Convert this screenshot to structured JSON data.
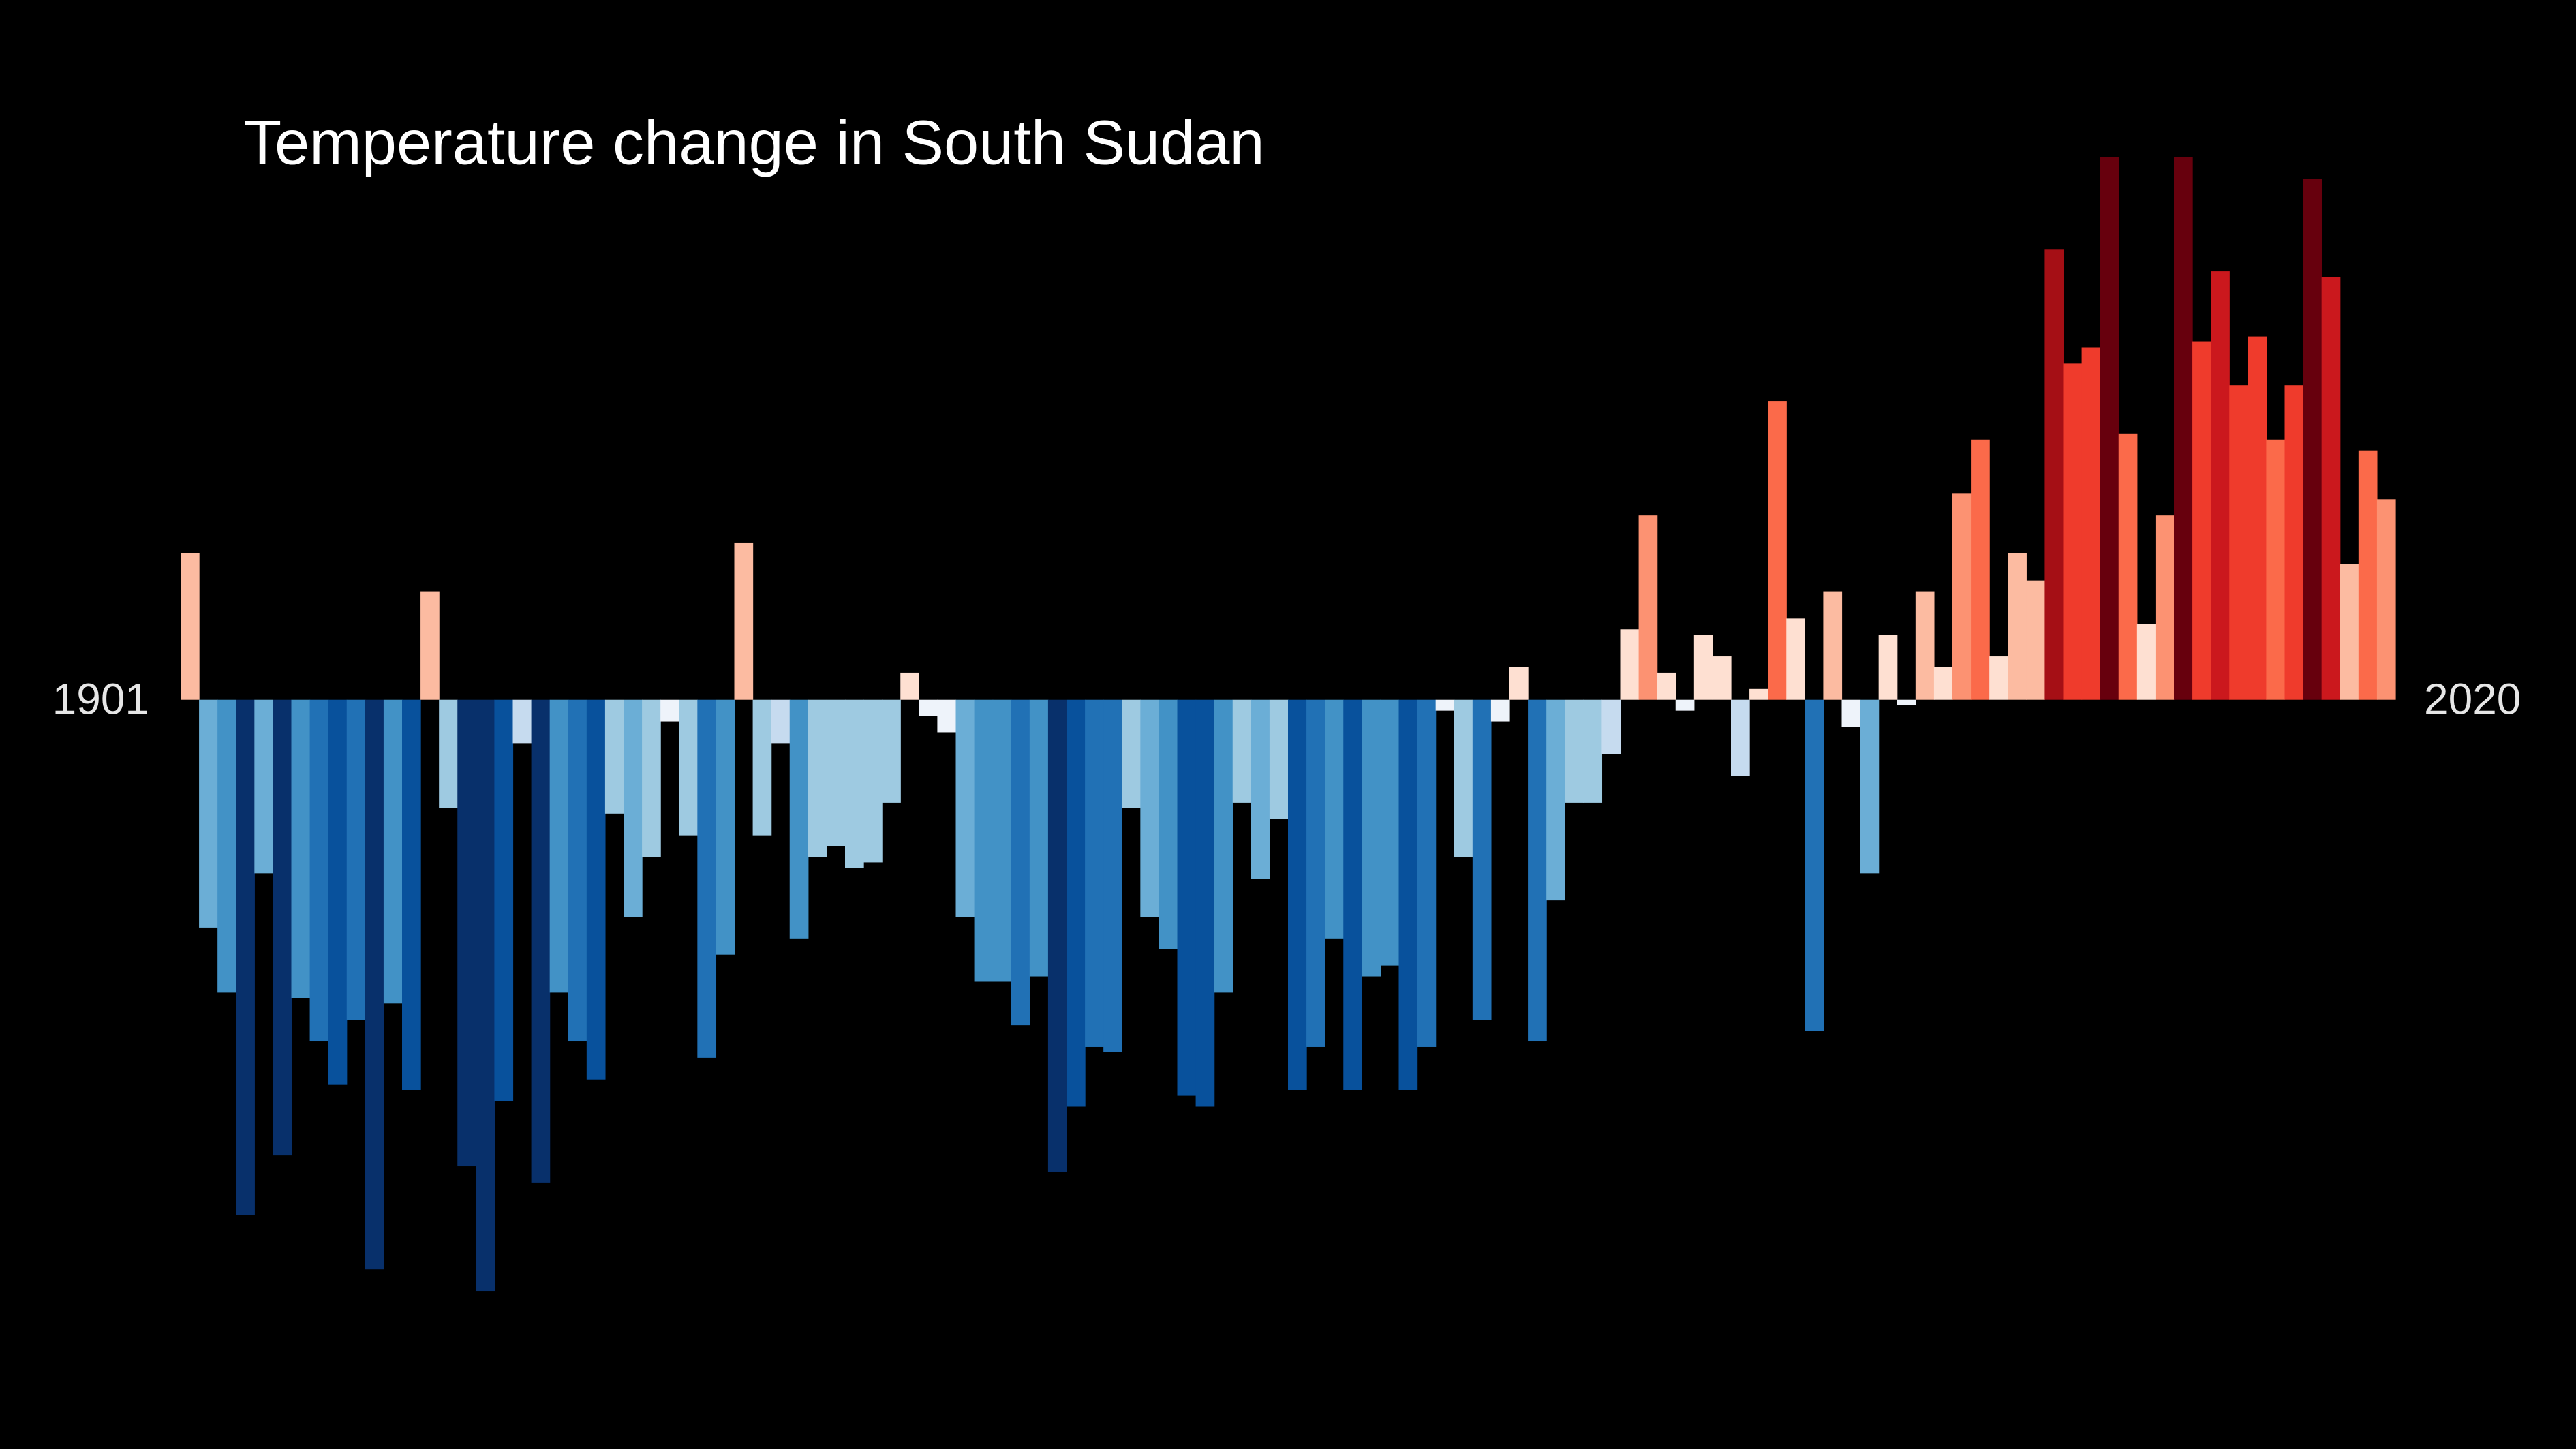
{
  "chart_data": {
    "type": "bar",
    "title": "Temperature change in South Sudan",
    "categories": [
      "1901",
      null,
      null,
      null,
      null,
      null,
      null,
      null,
      null,
      null,
      null,
      null,
      null,
      null,
      null,
      null,
      null,
      null,
      null,
      null,
      null,
      null,
      null,
      null,
      null,
      null,
      null,
      null,
      null,
      null,
      null,
      null,
      null,
      null,
      null,
      null,
      null,
      null,
      null,
      null,
      null,
      null,
      null,
      null,
      null,
      null,
      null,
      null,
      null,
      null,
      null,
      null,
      null,
      null,
      null,
      null,
      null,
      null,
      null,
      null,
      null,
      null,
      null,
      null,
      null,
      null,
      null,
      null,
      null,
      null,
      null,
      null,
      null,
      null,
      null,
      null,
      null,
      null,
      null,
      null,
      null,
      null,
      null,
      null,
      null,
      null,
      null,
      null,
      null,
      null,
      null,
      null,
      null,
      null,
      null,
      null,
      null,
      null,
      null,
      null,
      null,
      null,
      null,
      null,
      null,
      null,
      null,
      null,
      null,
      null,
      null,
      null,
      null,
      null,
      null,
      null,
      null,
      null,
      null,
      "2020"
    ],
    "values": [
      0.27,
      -0.42,
      -0.54,
      -0.95,
      -0.32,
      -0.84,
      -0.55,
      -0.63,
      -0.71,
      -0.59,
      -1.05,
      -0.56,
      -0.72,
      0.2,
      -0.2,
      -0.86,
      -1.09,
      -0.74,
      -0.08,
      -0.89,
      -0.54,
      -0.63,
      -0.7,
      -0.21,
      -0.4,
      -0.29,
      -0.04,
      -0.25,
      -0.66,
      -0.47,
      0.29,
      -0.25,
      -0.08,
      -0.44,
      -0.29,
      -0.27,
      -0.31,
      -0.3,
      -0.19,
      0.05,
      -0.03,
      -0.06,
      -0.4,
      -0.52,
      -0.52,
      -0.6,
      -0.51,
      -0.87,
      -0.75,
      -0.64,
      -0.65,
      -0.2,
      -0.4,
      -0.46,
      -0.73,
      -0.75,
      -0.54,
      -0.19,
      -0.33,
      -0.22,
      -0.72,
      -0.64,
      -0.44,
      -0.72,
      -0.51,
      -0.49,
      -0.72,
      -0.64,
      -0.02,
      -0.29,
      -0.59,
      -0.04,
      0.06,
      -0.63,
      -0.37,
      -0.19,
      -0.19,
      -0.1,
      0.13,
      0.34,
      0.05,
      -0.02,
      0.12,
      0.08,
      -0.14,
      0.02,
      0.55,
      0.15,
      -0.61,
      0.2,
      -0.05,
      -0.32,
      0.12,
      -0.01,
      0.2,
      0.06,
      0.38,
      0.48,
      0.08,
      0.27,
      0.22,
      0.83,
      0.62,
      0.65,
      1.0,
      0.49,
      0.14,
      0.34,
      1.0,
      0.66,
      0.79,
      0.58,
      0.67,
      0.48,
      0.58,
      0.96,
      0.78,
      0.25,
      0.46,
      0.37
    ],
    "ylim": [
      -1.1,
      1.0
    ],
    "colormap": [
      "#08306b",
      "#08306b",
      "#08519c",
      "#2171b5",
      "#4292c6",
      "#6baed6",
      "#9ecae1",
      "#c6dbef",
      "#eef3fa",
      "#fee0d2",
      "#fcbba1",
      "#fc9272",
      "#fb6a4a",
      "#ef3b2c",
      "#cb181d",
      "#a50f15",
      "#67000d"
    ]
  }
}
